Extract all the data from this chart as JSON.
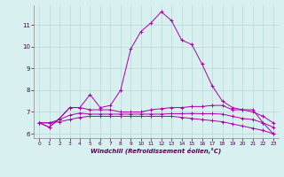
{
  "xlabel": "Windchill (Refroidissement éolien,°C)",
  "background_color": "#d8f0f0",
  "grid_color": "#b8d8d8",
  "line_color": "#aa00aa",
  "xlim": [
    -0.5,
    23.5
  ],
  "ylim": [
    5.8,
    11.9
  ],
  "yticks": [
    6,
    7,
    8,
    9,
    10,
    11
  ],
  "xticks": [
    0,
    1,
    2,
    3,
    4,
    5,
    6,
    7,
    8,
    9,
    10,
    11,
    12,
    13,
    14,
    15,
    16,
    17,
    18,
    19,
    20,
    21,
    22,
    23
  ],
  "series": [
    [
      6.5,
      6.3,
      6.7,
      7.2,
      7.2,
      7.8,
      7.2,
      7.3,
      8.0,
      9.9,
      10.7,
      11.1,
      11.6,
      11.2,
      10.3,
      10.1,
      9.2,
      8.2,
      7.5,
      7.2,
      7.1,
      7.1,
      6.5,
      6.0
    ],
    [
      6.5,
      6.3,
      6.7,
      7.2,
      7.2,
      7.1,
      7.1,
      7.1,
      7.0,
      7.0,
      7.0,
      7.1,
      7.15,
      7.2,
      7.2,
      7.25,
      7.25,
      7.3,
      7.3,
      7.1,
      7.1,
      7.0,
      6.8,
      6.5
    ],
    [
      6.5,
      6.5,
      6.55,
      6.65,
      6.75,
      6.8,
      6.8,
      6.8,
      6.8,
      6.8,
      6.8,
      6.8,
      6.8,
      6.8,
      6.75,
      6.7,
      6.65,
      6.6,
      6.55,
      6.45,
      6.35,
      6.25,
      6.15,
      6.0
    ],
    [
      6.5,
      6.5,
      6.65,
      6.85,
      6.95,
      6.9,
      6.9,
      6.9,
      6.9,
      6.9,
      6.9,
      6.9,
      6.9,
      6.92,
      6.92,
      6.93,
      6.92,
      6.92,
      6.9,
      6.8,
      6.7,
      6.65,
      6.5,
      6.3
    ]
  ]
}
